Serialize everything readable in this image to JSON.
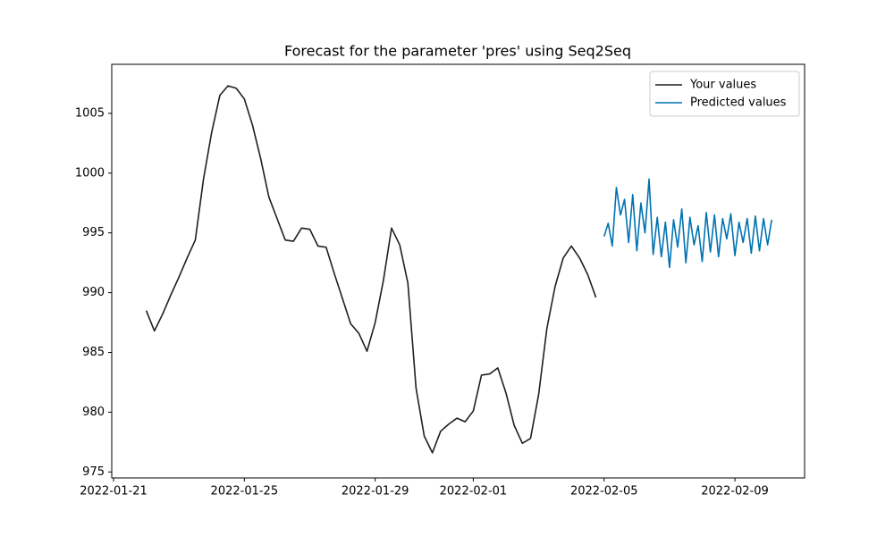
{
  "chart_data": {
    "type": "line",
    "title": "Forecast for the parameter 'pres' using Seq2Seq",
    "xlim": [
      "2022-01-20T22:41",
      "2022-02-11T03:08"
    ],
    "xticks": [
      {
        "value": "2022-01-21T00:00",
        "label": "2022-01-21"
      },
      {
        "value": "2022-01-25T00:00",
        "label": "2022-01-25"
      },
      {
        "value": "2022-01-29T00:00",
        "label": "2022-01-29"
      },
      {
        "value": "2022-02-01T00:00",
        "label": "2022-02-01"
      },
      {
        "value": "2022-02-05T00:00",
        "label": "2022-02-05"
      },
      {
        "value": "2022-02-09T00:00",
        "label": "2022-02-09"
      }
    ],
    "ylim": [
      974.5,
      1009.1
    ],
    "yticks": [
      975,
      980,
      985,
      990,
      995,
      1000,
      1005
    ],
    "legend": "upper right",
    "series": [
      {
        "name": "Your values",
        "color": "#1f1f1f",
        "x": [
          "2022-01-22T00:00",
          "2022-01-22T06:00",
          "2022-01-22T12:00",
          "2022-01-22T18:00",
          "2022-01-23T00:00",
          "2022-01-23T06:00",
          "2022-01-23T12:00",
          "2022-01-23T18:00",
          "2022-01-24T00:00",
          "2022-01-24T06:00",
          "2022-01-24T12:00",
          "2022-01-24T18:00",
          "2022-01-25T00:00",
          "2022-01-25T06:00",
          "2022-01-25T12:00",
          "2022-01-25T18:00",
          "2022-01-26T00:00",
          "2022-01-26T06:00",
          "2022-01-26T12:00",
          "2022-01-26T18:00",
          "2022-01-27T00:00",
          "2022-01-27T06:00",
          "2022-01-27T12:00",
          "2022-01-27T18:00",
          "2022-01-28T00:00",
          "2022-01-28T06:00",
          "2022-01-28T12:00",
          "2022-01-28T18:00",
          "2022-01-29T00:00",
          "2022-01-29T06:00",
          "2022-01-29T12:00",
          "2022-01-29T18:00",
          "2022-01-30T00:00",
          "2022-01-30T06:00",
          "2022-01-30T12:00",
          "2022-01-30T18:00",
          "2022-01-31T00:00",
          "2022-01-31T06:00",
          "2022-01-31T12:00",
          "2022-01-31T18:00",
          "2022-02-01T00:00",
          "2022-02-01T06:00",
          "2022-02-01T12:00",
          "2022-02-01T18:00",
          "2022-02-02T00:00",
          "2022-02-02T06:00",
          "2022-02-02T12:00",
          "2022-02-02T18:00",
          "2022-02-03T00:00",
          "2022-02-03T06:00",
          "2022-02-03T12:00",
          "2022-02-03T18:00",
          "2022-02-04T00:00",
          "2022-02-04T06:00",
          "2022-02-04T12:00",
          "2022-02-04T18:00"
        ],
        "values": [
          988.5,
          986.8,
          988.2,
          989.8,
          991.3,
          992.9,
          994.4,
          999.5,
          1003.4,
          1006.5,
          1007.3,
          1007.1,
          1006.2,
          1004.0,
          1001.2,
          998.0,
          996.2,
          994.4,
          994.3,
          995.4,
          995.3,
          993.9,
          993.8,
          991.6,
          989.5,
          987.4,
          986.6,
          985.1,
          987.5,
          991.0,
          995.4,
          994.0,
          990.8,
          982.0,
          978.0,
          976.6,
          978.4,
          979.0,
          979.5,
          979.2,
          980.1,
          983.1,
          983.2,
          983.7,
          981.6,
          978.9,
          977.4,
          977.8,
          981.5,
          987.0,
          990.5,
          992.9,
          993.9,
          992.9,
          991.5,
          989.6
        ]
      },
      {
        "name": "Predicted values",
        "color": "#0072b2",
        "x": [
          "2022-02-05T00:00",
          "2022-02-05T03:00",
          "2022-02-05T06:00",
          "2022-02-05T09:00",
          "2022-02-05T12:00",
          "2022-02-05T15:00",
          "2022-02-05T18:00",
          "2022-02-05T21:00",
          "2022-02-06T00:00",
          "2022-02-06T03:00",
          "2022-02-06T06:00",
          "2022-02-06T09:00",
          "2022-02-06T12:00",
          "2022-02-06T15:00",
          "2022-02-06T18:00",
          "2022-02-06T21:00",
          "2022-02-07T00:00",
          "2022-02-07T03:00",
          "2022-02-07T06:00",
          "2022-02-07T09:00",
          "2022-02-07T12:00",
          "2022-02-07T15:00",
          "2022-02-07T18:00",
          "2022-02-07T21:00",
          "2022-02-08T00:00",
          "2022-02-08T03:00",
          "2022-02-08T06:00",
          "2022-02-08T09:00",
          "2022-02-08T12:00",
          "2022-02-08T15:00",
          "2022-02-08T18:00",
          "2022-02-08T21:00",
          "2022-02-09T00:00",
          "2022-02-09T03:00",
          "2022-02-09T06:00",
          "2022-02-09T09:00",
          "2022-02-09T12:00",
          "2022-02-09T15:00",
          "2022-02-09T18:00",
          "2022-02-09T21:00",
          "2022-02-10T00:00",
          "2022-02-10T03:00"
        ],
        "values": [
          994.7,
          995.8,
          993.9,
          998.8,
          996.5,
          997.8,
          994.2,
          998.2,
          993.5,
          997.5,
          995.0,
          999.5,
          993.2,
          996.3,
          993.0,
          995.9,
          992.1,
          996.1,
          993.8,
          997.0,
          992.5,
          996.3,
          994.0,
          995.6,
          992.6,
          996.7,
          993.4,
          996.5,
          993.0,
          996.2,
          994.5,
          996.6,
          993.1,
          995.9,
          994.2,
          996.2,
          993.3,
          996.4,
          993.5,
          996.2,
          994.0,
          996.1
        ]
      }
    ]
  }
}
